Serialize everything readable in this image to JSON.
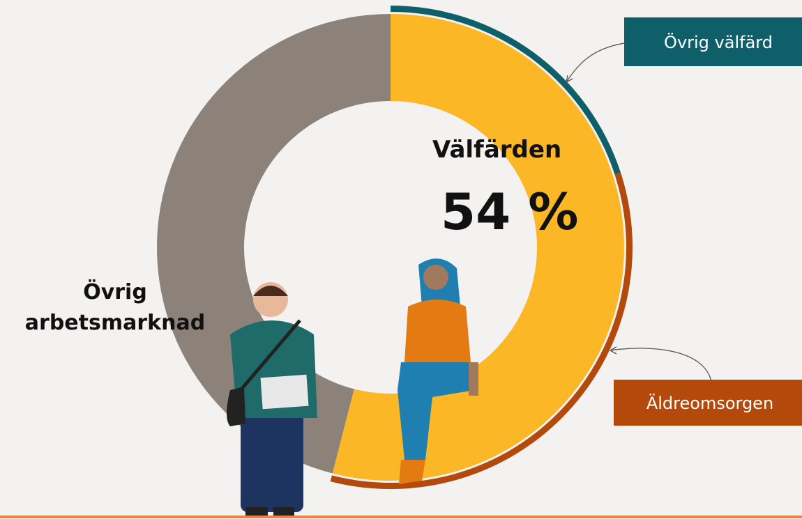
{
  "chart_data": {
    "type": "donut",
    "categories": [
      "Välfärden",
      "Övrig arbetsmarknad"
    ],
    "values": [
      54,
      46
    ],
    "value_labels": [
      "54 %",
      null
    ],
    "colors": [
      "#fbb726",
      "#8c8279"
    ],
    "outer_ring": {
      "categories": [
        "Övrig välfärd",
        "Äldreomsorgen"
      ],
      "values": [
        20,
        34
      ],
      "colors": [
        "#0f5f6b",
        "#b34a0c"
      ]
    }
  }
}
